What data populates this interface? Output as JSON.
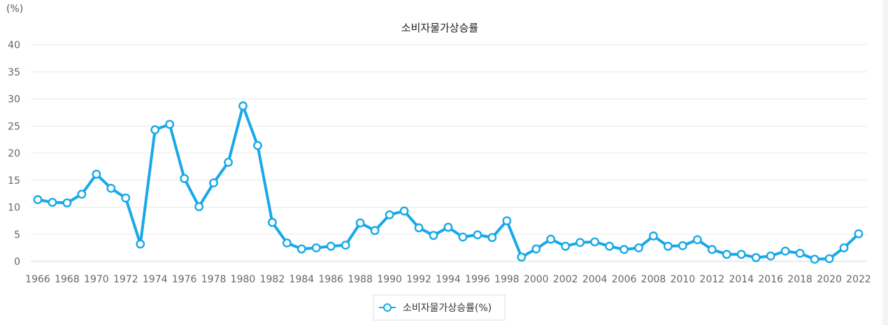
{
  "chart_data": {
    "type": "line",
    "title": "소비자물가상승률",
    "ylabel": "(%)",
    "xlabel": "",
    "ylim": [
      0,
      40
    ],
    "yticks": [
      0,
      5,
      10,
      15,
      20,
      25,
      30,
      35,
      40
    ],
    "xlim": [
      1966,
      2022
    ],
    "xticks": [
      1966,
      1968,
      1970,
      1972,
      1974,
      1976,
      1978,
      1980,
      1982,
      1984,
      1986,
      1988,
      1990,
      1992,
      1994,
      1996,
      1998,
      2000,
      2002,
      2004,
      2006,
      2008,
      2010,
      2012,
      2014,
      2016,
      2018,
      2020,
      2022
    ],
    "grid": true,
    "legend": "bottom-center",
    "colors": {
      "series": "#18a9e8",
      "grid": "#e9e9e9",
      "text": "#666666"
    },
    "series": [
      {
        "name": "소비자물가상승률(%)",
        "x": [
          1966,
          1967,
          1968,
          1969,
          1970,
          1971,
          1972,
          1973,
          1974,
          1975,
          1976,
          1977,
          1978,
          1979,
          1980,
          1981,
          1982,
          1983,
          1984,
          1985,
          1986,
          1987,
          1988,
          1989,
          1990,
          1991,
          1992,
          1993,
          1994,
          1995,
          1996,
          1997,
          1998,
          1999,
          2000,
          2001,
          2002,
          2003,
          2004,
          2005,
          2006,
          2007,
          2008,
          2009,
          2010,
          2011,
          2012,
          2013,
          2014,
          2015,
          2016,
          2017,
          2018,
          2019,
          2020,
          2021,
          2022
        ],
        "values": [
          11.4,
          10.9,
          10.8,
          12.4,
          16.1,
          13.5,
          11.7,
          3.2,
          24.3,
          25.3,
          15.3,
          10.1,
          14.5,
          18.3,
          28.7,
          21.4,
          7.2,
          3.4,
          2.3,
          2.5,
          2.8,
          3.0,
          7.1,
          5.7,
          8.6,
          9.3,
          6.2,
          4.8,
          6.3,
          4.5,
          4.9,
          4.4,
          7.5,
          0.8,
          2.3,
          4.1,
          2.8,
          3.5,
          3.6,
          2.8,
          2.2,
          2.5,
          4.7,
          2.8,
          2.9,
          4.0,
          2.2,
          1.3,
          1.3,
          0.7,
          1.0,
          1.9,
          1.5,
          0.4,
          0.5,
          2.5,
          5.1
        ]
      }
    ]
  }
}
